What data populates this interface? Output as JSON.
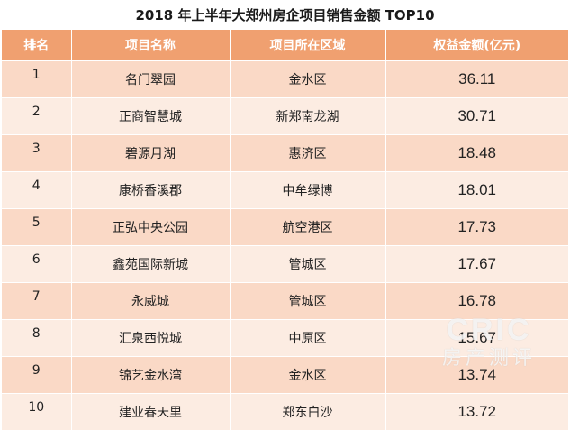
{
  "title": "2018 年上半年大郑州房企项目销售金额 TOP10",
  "headers": {
    "rank": "排名",
    "name": "项目名称",
    "region": "项目所在区域",
    "amount": "权益金额(亿元)"
  },
  "rows": [
    {
      "rank": "1",
      "name": "名门翠园",
      "region": "金水区",
      "amount": "36.11"
    },
    {
      "rank": "2",
      "name": "正商智慧城",
      "region": "新郑南龙湖",
      "amount": "30.71"
    },
    {
      "rank": "3",
      "name": "碧源月湖",
      "region": "惠济区",
      "amount": "18.48"
    },
    {
      "rank": "4",
      "name": "康桥香溪郡",
      "region": "中牟绿博",
      "amount": "18.01"
    },
    {
      "rank": "5",
      "name": "正弘中央公园",
      "region": "航空港区",
      "amount": "17.73"
    },
    {
      "rank": "6",
      "name": "鑫苑国际新城",
      "region": "管城区",
      "amount": "17.67"
    },
    {
      "rank": "7",
      "name": "永威城",
      "region": "管城区",
      "amount": "16.78"
    },
    {
      "rank": "8",
      "name": "汇泉西悦城",
      "region": "中原区",
      "amount": "15.67"
    },
    {
      "rank": "9",
      "name": "锦艺金水湾",
      "region": "金水区",
      "amount": "13.74"
    },
    {
      "rank": "10",
      "name": "建业春天里",
      "region": "郑东白沙",
      "amount": "13.72"
    }
  ],
  "watermark": {
    "logo": "CRIC",
    "sub": "房产测评"
  },
  "colors": {
    "header_bg": "#f0a070",
    "row_odd": "#fad9c6",
    "row_even": "#fcece2"
  }
}
